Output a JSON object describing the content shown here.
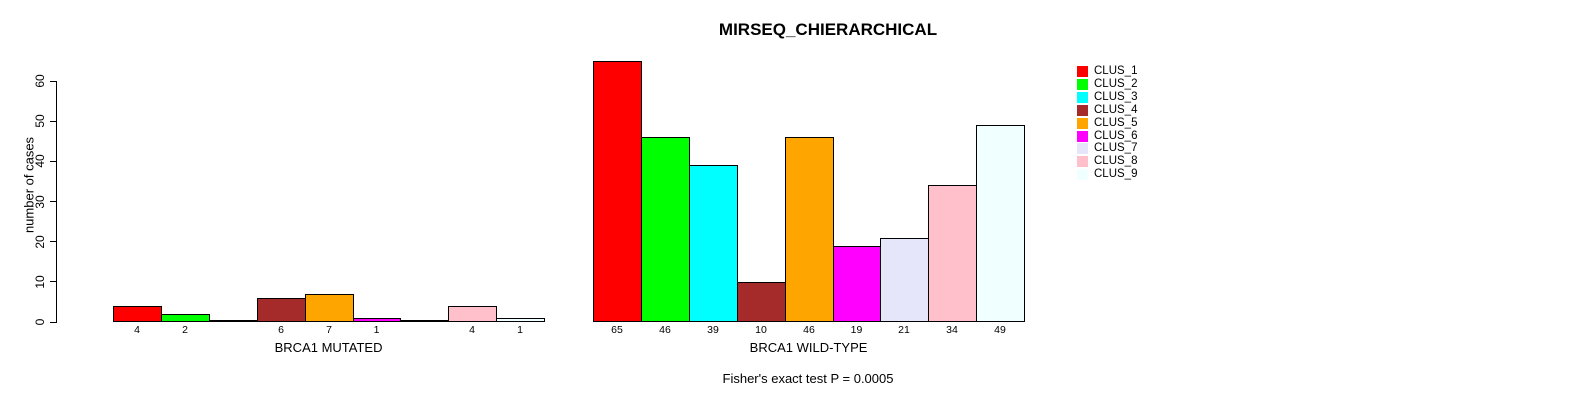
{
  "chart_data": {
    "type": "bar",
    "title": "MIRSEQ_CHIERARCHICAL",
    "ylabel": "number of cases",
    "xlabel": "",
    "categories": [
      "BRCA1 MUTATED",
      "BRCA1 WILD-TYPE"
    ],
    "yticks": [
      0,
      10,
      20,
      30,
      40,
      50,
      60
    ],
    "ylim": [
      0,
      65
    ],
    "grid": false,
    "legend_position": "top-right",
    "bar_borders": "#000000",
    "background": "#ffffff",
    "series": [
      {
        "name": "CLUS_1",
        "color": "#ff0000",
        "values": [
          4,
          65
        ]
      },
      {
        "name": "CLUS_2",
        "color": "#00ff00",
        "values": [
          2,
          46
        ]
      },
      {
        "name": "CLUS_3",
        "color": "#00ffff",
        "values": [
          0,
          39
        ]
      },
      {
        "name": "CLUS_4",
        "color": "#a52a2a",
        "values": [
          6,
          10
        ]
      },
      {
        "name": "CLUS_5",
        "color": "#ffa500",
        "values": [
          7,
          46
        ]
      },
      {
        "name": "CLUS_6",
        "color": "#ff00ff",
        "values": [
          1,
          19
        ]
      },
      {
        "name": "CLUS_7",
        "color": "#e6e6fa",
        "values": [
          0,
          21
        ]
      },
      {
        "name": "CLUS_8",
        "color": "#ffc0cb",
        "values": [
          4,
          34
        ]
      },
      {
        "name": "CLUS_9",
        "color": "#f0ffff",
        "values": [
          1,
          49
        ]
      }
    ],
    "annotation": "Fisher's exact test P = 0.0005",
    "zero_value_bars": "drawn as flat line, no numeric label"
  }
}
